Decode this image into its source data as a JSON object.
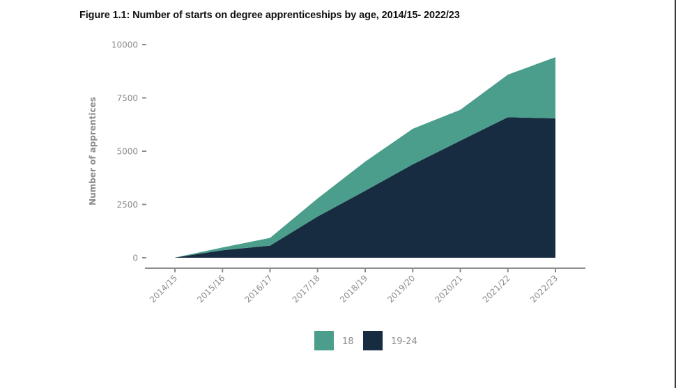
{
  "title": "Figure 1.1: Number of starts on degree apprenticeships by age, 2014/15- 2022/23",
  "chart_data": {
    "type": "area",
    "stacked": true,
    "title": "Figure 1.1: Number of starts on degree apprenticeships by age, 2014/15- 2022/23",
    "xlabel": "",
    "ylabel": "Number of apprentices",
    "categories": [
      "2014/15",
      "2015/16",
      "2016/17",
      "2017/18",
      "2018/19",
      "2019/20",
      "2020/21",
      "2021/22",
      "2022/23"
    ],
    "series": [
      {
        "name": "19-24",
        "color": "#172b41",
        "values": [
          10,
          350,
          570,
          1930,
          3140,
          4380,
          5490,
          6590,
          6540
        ]
      },
      {
        "name": "18",
        "color": "#4a9e8b",
        "values": [
          0,
          130,
          360,
          850,
          1370,
          1670,
          1450,
          2000,
          2870
        ]
      }
    ],
    "yticks": [
      0,
      2500,
      5000,
      7500,
      10000
    ],
    "ylim": [
      0,
      10000
    ],
    "grid": false,
    "legend": {
      "position": "bottom",
      "order": [
        "18",
        "19-24"
      ]
    }
  }
}
